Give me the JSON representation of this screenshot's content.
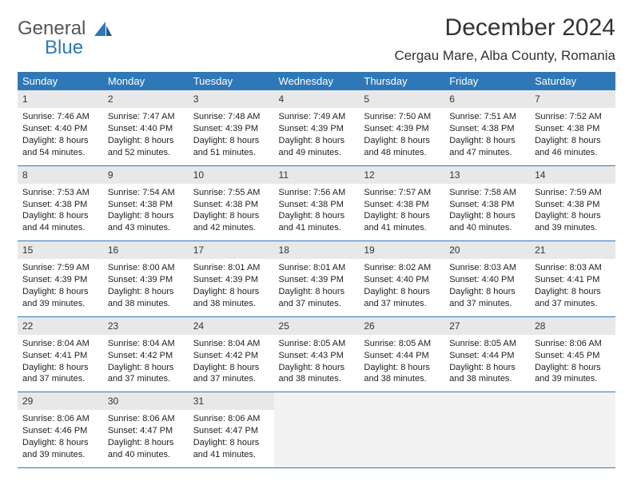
{
  "logo": {
    "line1": "General",
    "line2": "Blue"
  },
  "title": "December 2024",
  "location": "Cergau Mare, Alba County, Romania",
  "colors": {
    "header_bg": "#2f78b8",
    "header_fg": "#ffffff",
    "daynum_bg": "#e8e8e8",
    "border": "#2f78b8",
    "empty_bg": "#f2f2f2",
    "logo_blue": "#2f78b8",
    "text": "#222222"
  },
  "weekdays": [
    "Sunday",
    "Monday",
    "Tuesday",
    "Wednesday",
    "Thursday",
    "Friday",
    "Saturday"
  ],
  "weeks": [
    [
      {
        "n": "1",
        "sr": "Sunrise: 7:46 AM",
        "ss": "Sunset: 4:40 PM",
        "dl": "Daylight: 8 hours and 54 minutes."
      },
      {
        "n": "2",
        "sr": "Sunrise: 7:47 AM",
        "ss": "Sunset: 4:40 PM",
        "dl": "Daylight: 8 hours and 52 minutes."
      },
      {
        "n": "3",
        "sr": "Sunrise: 7:48 AM",
        "ss": "Sunset: 4:39 PM",
        "dl": "Daylight: 8 hours and 51 minutes."
      },
      {
        "n": "4",
        "sr": "Sunrise: 7:49 AM",
        "ss": "Sunset: 4:39 PM",
        "dl": "Daylight: 8 hours and 49 minutes."
      },
      {
        "n": "5",
        "sr": "Sunrise: 7:50 AM",
        "ss": "Sunset: 4:39 PM",
        "dl": "Daylight: 8 hours and 48 minutes."
      },
      {
        "n": "6",
        "sr": "Sunrise: 7:51 AM",
        "ss": "Sunset: 4:38 PM",
        "dl": "Daylight: 8 hours and 47 minutes."
      },
      {
        "n": "7",
        "sr": "Sunrise: 7:52 AM",
        "ss": "Sunset: 4:38 PM",
        "dl": "Daylight: 8 hours and 46 minutes."
      }
    ],
    [
      {
        "n": "8",
        "sr": "Sunrise: 7:53 AM",
        "ss": "Sunset: 4:38 PM",
        "dl": "Daylight: 8 hours and 44 minutes."
      },
      {
        "n": "9",
        "sr": "Sunrise: 7:54 AM",
        "ss": "Sunset: 4:38 PM",
        "dl": "Daylight: 8 hours and 43 minutes."
      },
      {
        "n": "10",
        "sr": "Sunrise: 7:55 AM",
        "ss": "Sunset: 4:38 PM",
        "dl": "Daylight: 8 hours and 42 minutes."
      },
      {
        "n": "11",
        "sr": "Sunrise: 7:56 AM",
        "ss": "Sunset: 4:38 PM",
        "dl": "Daylight: 8 hours and 41 minutes."
      },
      {
        "n": "12",
        "sr": "Sunrise: 7:57 AM",
        "ss": "Sunset: 4:38 PM",
        "dl": "Daylight: 8 hours and 41 minutes."
      },
      {
        "n": "13",
        "sr": "Sunrise: 7:58 AM",
        "ss": "Sunset: 4:38 PM",
        "dl": "Daylight: 8 hours and 40 minutes."
      },
      {
        "n": "14",
        "sr": "Sunrise: 7:59 AM",
        "ss": "Sunset: 4:38 PM",
        "dl": "Daylight: 8 hours and 39 minutes."
      }
    ],
    [
      {
        "n": "15",
        "sr": "Sunrise: 7:59 AM",
        "ss": "Sunset: 4:39 PM",
        "dl": "Daylight: 8 hours and 39 minutes."
      },
      {
        "n": "16",
        "sr": "Sunrise: 8:00 AM",
        "ss": "Sunset: 4:39 PM",
        "dl": "Daylight: 8 hours and 38 minutes."
      },
      {
        "n": "17",
        "sr": "Sunrise: 8:01 AM",
        "ss": "Sunset: 4:39 PM",
        "dl": "Daylight: 8 hours and 38 minutes."
      },
      {
        "n": "18",
        "sr": "Sunrise: 8:01 AM",
        "ss": "Sunset: 4:39 PM",
        "dl": "Daylight: 8 hours and 37 minutes."
      },
      {
        "n": "19",
        "sr": "Sunrise: 8:02 AM",
        "ss": "Sunset: 4:40 PM",
        "dl": "Daylight: 8 hours and 37 minutes."
      },
      {
        "n": "20",
        "sr": "Sunrise: 8:03 AM",
        "ss": "Sunset: 4:40 PM",
        "dl": "Daylight: 8 hours and 37 minutes."
      },
      {
        "n": "21",
        "sr": "Sunrise: 8:03 AM",
        "ss": "Sunset: 4:41 PM",
        "dl": "Daylight: 8 hours and 37 minutes."
      }
    ],
    [
      {
        "n": "22",
        "sr": "Sunrise: 8:04 AM",
        "ss": "Sunset: 4:41 PM",
        "dl": "Daylight: 8 hours and 37 minutes."
      },
      {
        "n": "23",
        "sr": "Sunrise: 8:04 AM",
        "ss": "Sunset: 4:42 PM",
        "dl": "Daylight: 8 hours and 37 minutes."
      },
      {
        "n": "24",
        "sr": "Sunrise: 8:04 AM",
        "ss": "Sunset: 4:42 PM",
        "dl": "Daylight: 8 hours and 37 minutes."
      },
      {
        "n": "25",
        "sr": "Sunrise: 8:05 AM",
        "ss": "Sunset: 4:43 PM",
        "dl": "Daylight: 8 hours and 38 minutes."
      },
      {
        "n": "26",
        "sr": "Sunrise: 8:05 AM",
        "ss": "Sunset: 4:44 PM",
        "dl": "Daylight: 8 hours and 38 minutes."
      },
      {
        "n": "27",
        "sr": "Sunrise: 8:05 AM",
        "ss": "Sunset: 4:44 PM",
        "dl": "Daylight: 8 hours and 38 minutes."
      },
      {
        "n": "28",
        "sr": "Sunrise: 8:06 AM",
        "ss": "Sunset: 4:45 PM",
        "dl": "Daylight: 8 hours and 39 minutes."
      }
    ],
    [
      {
        "n": "29",
        "sr": "Sunrise: 8:06 AM",
        "ss": "Sunset: 4:46 PM",
        "dl": "Daylight: 8 hours and 39 minutes."
      },
      {
        "n": "30",
        "sr": "Sunrise: 8:06 AM",
        "ss": "Sunset: 4:47 PM",
        "dl": "Daylight: 8 hours and 40 minutes."
      },
      {
        "n": "31",
        "sr": "Sunrise: 8:06 AM",
        "ss": "Sunset: 4:47 PM",
        "dl": "Daylight: 8 hours and 41 minutes."
      },
      null,
      null,
      null,
      null
    ]
  ]
}
